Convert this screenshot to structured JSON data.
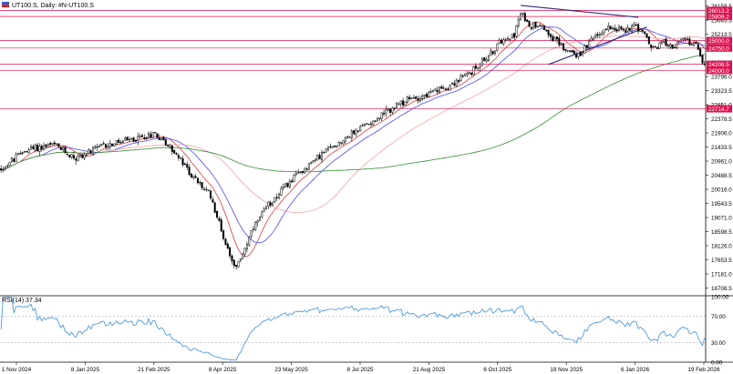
{
  "header": {
    "symbol_line": "UT100.S, Daily:  #N-UT100.S",
    "rsi_label": "RSI(14) 37.34"
  },
  "colors": {
    "price_up": "#000000",
    "price_down": "#000000",
    "ma_fast": "#e03a3a",
    "ma_mid": "#4a4aff",
    "ma_slow_red": "#f4a3a3",
    "ma_long": "#2f8f2f",
    "hline": "#e0114f",
    "trend": "#3a2f7a",
    "rsi": "#3b8fe0",
    "label_bg": "#e0114f",
    "label_text": "#ffffff",
    "grid": "#000000"
  },
  "chart_data": [
    {
      "type": "candlestick",
      "title": "UT100.S, Daily",
      "x_ticks": [
        "1 Nov 2024",
        "8 Jan 2025",
        "21 Feb 2025",
        "8 Apr 2025",
        "23 May 2025",
        "8 Jul 2025",
        "21 Aug 2025",
        "6 Oct 2025",
        "19 Nov 2025",
        "6 Jan 2026",
        "19 Feb 2026"
      ],
      "y_ticks": [
        "26158.5",
        "25685.5",
        "25213.5",
        "24740.5",
        "24268.5",
        "23796.0",
        "23323.5",
        "22851.0",
        "22378.5",
        "21906.0",
        "21433.5",
        "20961.0",
        "20488.5",
        "20016.0",
        "19543.5",
        "19071.0",
        "18598.5",
        "18126.0",
        "17653.5",
        "17181.0",
        "16708.5"
      ],
      "ylim": [
        16480,
        26300
      ],
      "n_bars": 330,
      "anchors": [
        [
          0,
          20700
        ],
        [
          12,
          21350
        ],
        [
          25,
          21500
        ],
        [
          35,
          21050
        ],
        [
          48,
          21480
        ],
        [
          60,
          21650
        ],
        [
          72,
          21900
        ],
        [
          80,
          21350
        ],
        [
          90,
          20400
        ],
        [
          98,
          19800
        ],
        [
          105,
          18200
        ],
        [
          110,
          17350
        ],
        [
          113,
          17900
        ],
        [
          118,
          18700
        ],
        [
          125,
          19500
        ],
        [
          132,
          20050
        ],
        [
          140,
          20600
        ],
        [
          150,
          21200
        ],
        [
          160,
          21700
        ],
        [
          170,
          22150
        ],
        [
          180,
          22600
        ],
        [
          190,
          23000
        ],
        [
          200,
          23200
        ],
        [
          210,
          23500
        ],
        [
          220,
          23950
        ],
        [
          230,
          24650
        ],
        [
          235,
          25100
        ],
        [
          240,
          25200
        ],
        [
          243,
          25900
        ],
        [
          248,
          25500
        ],
        [
          252,
          25600
        ],
        [
          258,
          25100
        ],
        [
          265,
          24650
        ],
        [
          270,
          24500
        ],
        [
          278,
          25150
        ],
        [
          285,
          25500
        ],
        [
          292,
          25300
        ],
        [
          296,
          25600
        ],
        [
          300,
          25250
        ],
        [
          305,
          24700
        ],
        [
          310,
          24950
        ],
        [
          315,
          24800
        ],
        [
          320,
          25050
        ],
        [
          326,
          24750
        ],
        [
          329,
          24150
        ]
      ],
      "horizontal_levels": [
        {
          "value": 26013.2,
          "label": "26013.2"
        },
        {
          "value": 25809.2,
          "label": "25809.2"
        },
        {
          "value": 25000.0,
          "label": "25000.0"
        },
        {
          "value": 24750.0,
          "label": "24750.0"
        },
        {
          "value": 24206.5,
          "label": "24206.5"
        },
        {
          "value": 24000.0,
          "label": "24000.0"
        },
        {
          "value": 22714.7,
          "label": "22714.7"
        }
      ],
      "trendlines": [
        {
          "from": [
            243,
            26180
          ],
          "to": [
            298,
            25780
          ]
        },
        {
          "from": [
            256,
            24200
          ],
          "to": [
            302,
            25450
          ]
        }
      ],
      "moving_averages": [
        {
          "period": 10,
          "color_key": "ma_fast"
        },
        {
          "period": 20,
          "color_key": "ma_mid"
        },
        {
          "period": 50,
          "color_key": "ma_slow_red"
        },
        {
          "period": 150,
          "color_key": "ma_long"
        }
      ]
    },
    {
      "type": "line",
      "title": "RSI(14) 37.34",
      "y_ticks": [
        "100.00",
        "70.00",
        "30.00",
        "0.00"
      ],
      "levels": [
        70,
        30
      ],
      "ylim": [
        0,
        100
      ],
      "last_value": 37.34
    }
  ]
}
